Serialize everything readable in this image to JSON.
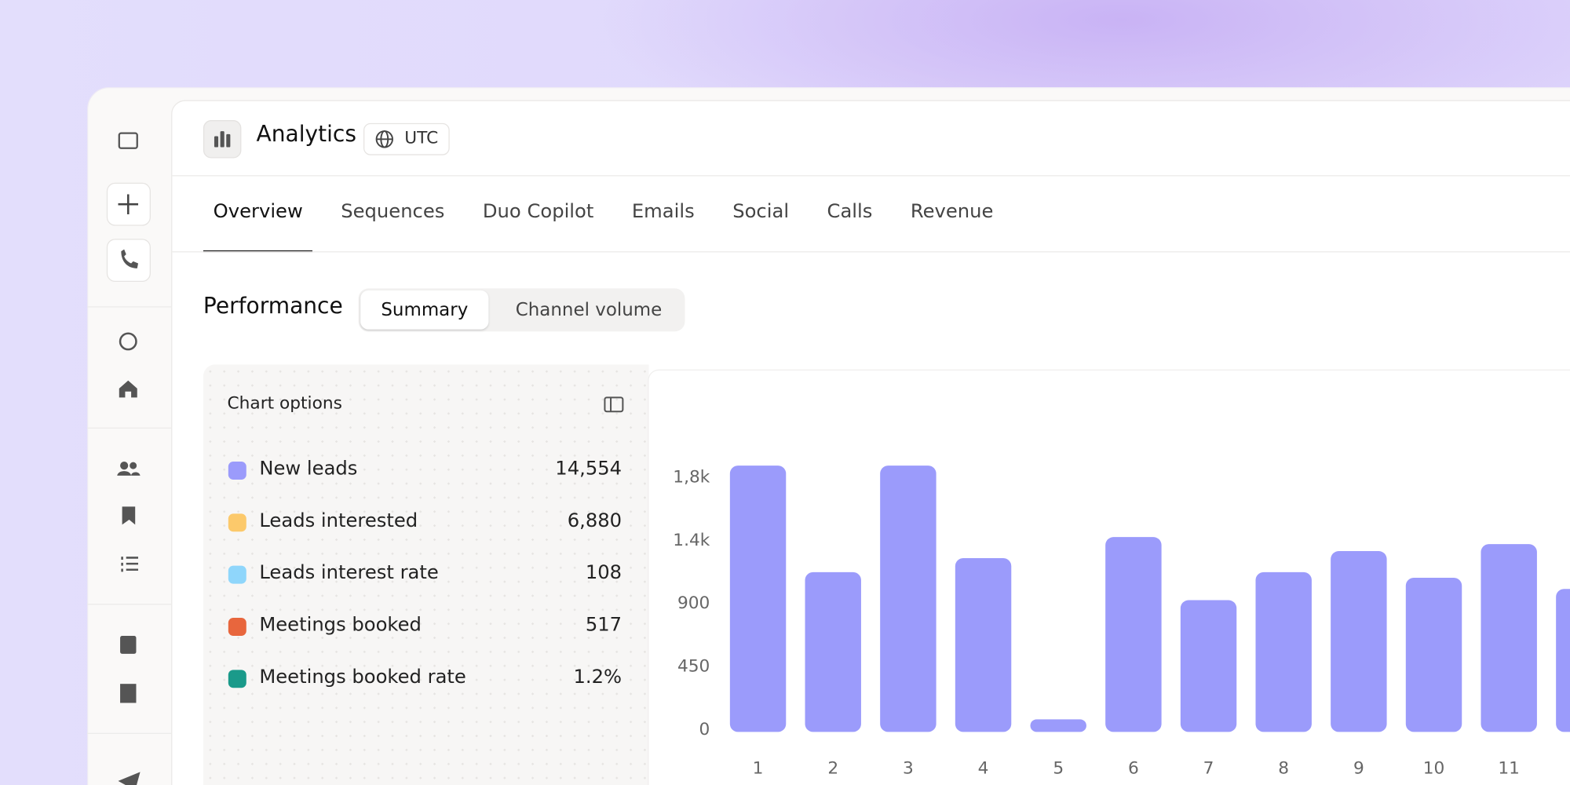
{
  "header": {
    "title": "Analytics",
    "timezone": "UTC"
  },
  "tabs": [
    "Overview",
    "Sequences",
    "Duo Copilot",
    "Emails",
    "Social",
    "Calls",
    "Revenue"
  ],
  "performance": {
    "title": "Performance",
    "views": [
      "Summary",
      "Channel volume"
    ]
  },
  "chart_options": {
    "title": "Chart options",
    "metrics": [
      {
        "name": "New leads",
        "value": "14,554",
        "color": "#9b9bfb"
      },
      {
        "name": "Leads interested",
        "value": "6,880",
        "color": "#fcc96b"
      },
      {
        "name": "Leads interest rate",
        "value": "108",
        "color": "#8fd6fb"
      },
      {
        "name": "Meetings booked",
        "value": "517",
        "color": "#e8663d"
      },
      {
        "name": "Meetings booked rate",
        "value": "1.2%",
        "color": "#1a9a8a"
      }
    ]
  },
  "chart_data": {
    "type": "bar",
    "categories": [
      "1",
      "2",
      "3",
      "4",
      "5",
      "6",
      "7",
      "8",
      "9",
      "10",
      "11",
      null
    ],
    "values": [
      1900,
      1140,
      1900,
      1240,
      90,
      1390,
      940,
      1140,
      1290,
      1100,
      1340,
      1020
    ],
    "color": "#9b9bfb",
    "ylim": [
      0,
      1900
    ],
    "yticks": [
      0,
      450,
      900,
      {
        "value": 1350,
        "label": "1.4k"
      },
      {
        "value": 1800,
        "label": "1,8k"
      }
    ]
  }
}
